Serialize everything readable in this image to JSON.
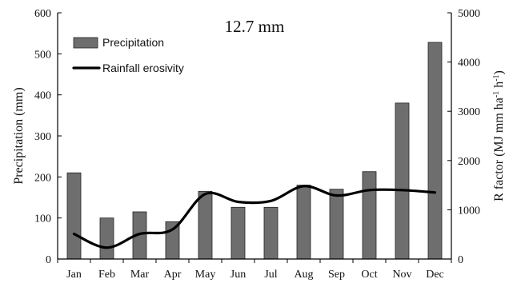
{
  "chart_data": {
    "type": "bar",
    "title": "12.7 mm",
    "categories": [
      "Jan",
      "Feb",
      "Mar",
      "Apr",
      "May",
      "Jun",
      "Jul",
      "Aug",
      "Sep",
      "Oct",
      "Nov",
      "Dec"
    ],
    "series": [
      {
        "name": "Precipitation",
        "type": "bar",
        "axis": "left",
        "color": "#6e6e6e",
        "values": [
          210,
          100,
          115,
          91,
          165,
          126,
          126,
          180,
          170,
          213,
          380,
          528
        ]
      },
      {
        "name": "Rainfall erosivity",
        "type": "line",
        "axis": "right",
        "color": "#000000",
        "values": [
          510,
          230,
          510,
          600,
          1320,
          1160,
          1180,
          1480,
          1290,
          1400,
          1400,
          1350
        ]
      }
    ],
    "ylabel": "Precipitation (mm)",
    "ylim": [
      0,
      600
    ],
    "yticks": [
      0,
      100,
      200,
      300,
      400,
      500,
      600
    ],
    "y2label_parts": [
      "R factor (MJ mm ha",
      "-1",
      " h",
      "-1",
      ")"
    ],
    "y2lim": [
      0,
      5000
    ],
    "y2ticks": [
      0,
      1000,
      2000,
      3000,
      4000,
      5000
    ],
    "legend": {
      "position": "top-left"
    },
    "grid": false
  }
}
